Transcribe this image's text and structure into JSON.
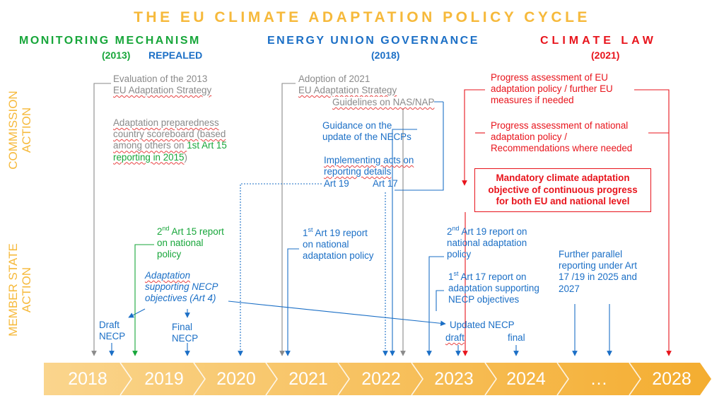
{
  "title": "THE EU CLIMATE ADAPTATION POLICY CYCLE",
  "headers": {
    "monitoring": {
      "name": "MONITORING MECHANISM",
      "year": "(2013)",
      "status": "REPEALED"
    },
    "energy_union": {
      "name": "ENERGY UNION GOVERNANCE",
      "year": "(2018)"
    },
    "climate_law": {
      "name": "CLIMATE LAW",
      "year": "(2021)"
    }
  },
  "side_labels": {
    "commission": [
      "COMMISSION",
      "ACTION"
    ],
    "member_state": [
      "MEMBER STATE",
      "ACTION"
    ]
  },
  "commission_actions": {
    "eval_2013": [
      "Evaluation of the 2013",
      "EU Adaptation Strategy"
    ],
    "scoreboard": {
      "line1": "Adaptation preparedness",
      "line2": "country scoreboard (based",
      "line3a": "among others on ",
      "line3b": "1st Art 15",
      "line4a": "reporting in 2015",
      "line4b": ")"
    },
    "adoption_2021": [
      "Adoption of 2021",
      "EU Adaptation Strategy"
    ],
    "guidelines": "Guidelines on NAS/NAP",
    "guidance_necp": [
      "Guidance on the",
      "update of the NECPs"
    ],
    "implementing_acts": [
      "Implementing acts on",
      "reporting details"
    ],
    "art19": "Art 19",
    "art17": "Art 17",
    "progress_eu": [
      "Progress assessment of EU",
      "adaptation policy / further EU",
      "measures if needed"
    ],
    "progress_national": [
      "Progress assessment of national",
      "adaptation policy /",
      "Recommendations where needed"
    ],
    "mandatory_objective": [
      "Mandatory climate adaptation",
      "objective of continuous progress",
      "for both EU and national level"
    ]
  },
  "member_state_actions": {
    "art15_report": {
      "num": "2",
      "sup": "nd",
      "line1": " Art 15 report",
      "line2": "on national",
      "line3": "policy"
    },
    "adaptation_necp": [
      "Adaptation",
      "supporting NECP",
      "objectives (Art 4)"
    ],
    "draft_necp": [
      "Draft",
      "NECP"
    ],
    "final_necp": [
      "Final",
      "NECP"
    ],
    "art19_first": {
      "num": "1",
      "sup": "st",
      "line1": " Art 19 report",
      "line2": "on national",
      "line3": "adaptation policy"
    },
    "art19_second": {
      "num": "2",
      "sup": "nd",
      "line1": " Art 19 report on",
      "line2": "national adaptation",
      "line3": "policy"
    },
    "art17_first": {
      "num": "1",
      "sup": "st",
      "line1": " Art 17 report on",
      "line2": "adaptation supporting",
      "line3": "NECP objectives"
    },
    "updated_necp": "Updated NECP",
    "draft": "draft",
    "final": "final",
    "further_reporting": [
      "Further parallel",
      "reporting under Art",
      "17 /19 in 2025 and",
      "2027"
    ]
  },
  "timeline": [
    "2018",
    "2019",
    "2020",
    "2021",
    "2022",
    "2023",
    "2024",
    "…",
    "2028"
  ],
  "colors": {
    "accent": "#f6b93b",
    "green": "#17a63a",
    "blue": "#1b6fc6",
    "red": "#e8141c",
    "gray": "#8a8a8a"
  }
}
